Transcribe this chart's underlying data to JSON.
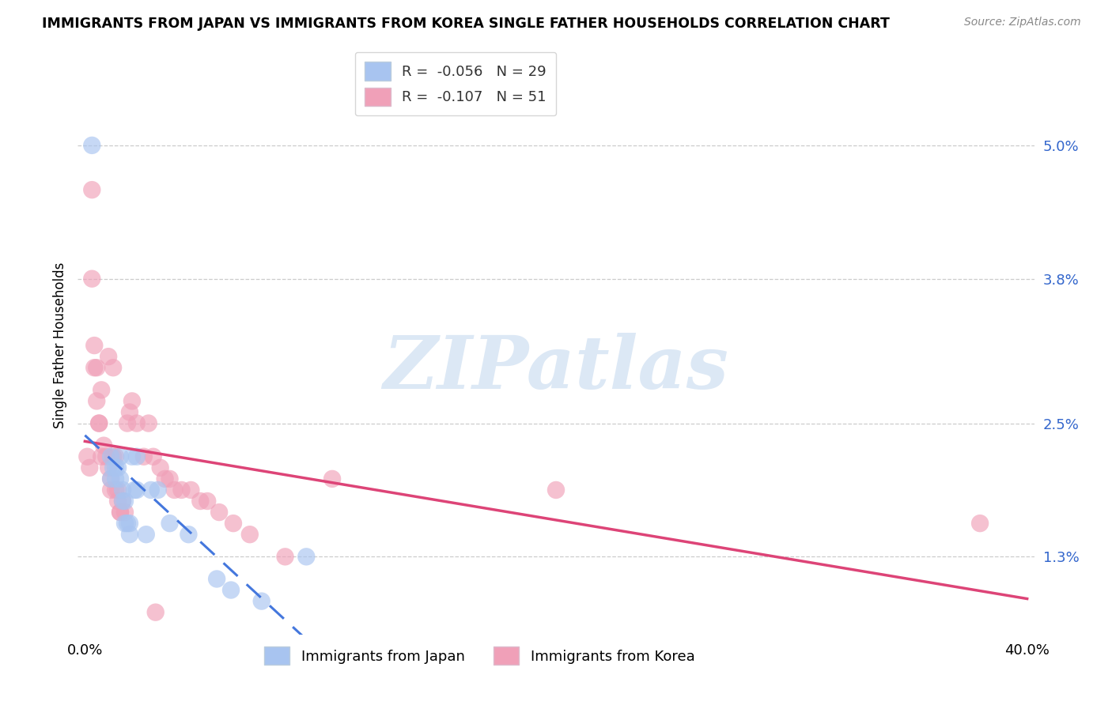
{
  "title": "IMMIGRANTS FROM JAPAN VS IMMIGRANTS FROM KOREA SINGLE FATHER HOUSEHOLDS CORRELATION CHART",
  "source": "Source: ZipAtlas.com",
  "ylabel": "Single Father Households",
  "ytick_labels": [
    "1.3%",
    "2.5%",
    "3.8%",
    "5.0%"
  ],
  "ytick_values": [
    0.013,
    0.025,
    0.038,
    0.05
  ],
  "xlim": [
    -0.003,
    0.403
  ],
  "ylim": [
    0.006,
    0.058
  ],
  "japan_R": -0.056,
  "japan_N": 29,
  "korea_R": -0.107,
  "korea_N": 51,
  "japan_color": "#a8c4f0",
  "korea_color": "#f0a0b8",
  "japan_line_color": "#4477dd",
  "korea_line_color": "#dd4477",
  "watermark_text": "ZIPatlas",
  "watermark_color": "#dce8f5",
  "legend_R_color": "#2255cc",
  "japan_points": [
    [
      0.003,
      0.05
    ],
    [
      0.011,
      0.022
    ],
    [
      0.011,
      0.02
    ],
    [
      0.012,
      0.021
    ],
    [
      0.013,
      0.02
    ],
    [
      0.013,
      0.021
    ],
    [
      0.014,
      0.021
    ],
    [
      0.015,
      0.02
    ],
    [
      0.015,
      0.022
    ],
    [
      0.016,
      0.019
    ],
    [
      0.016,
      0.018
    ],
    [
      0.017,
      0.018
    ],
    [
      0.017,
      0.016
    ],
    [
      0.018,
      0.016
    ],
    [
      0.019,
      0.016
    ],
    [
      0.019,
      0.015
    ],
    [
      0.02,
      0.022
    ],
    [
      0.021,
      0.019
    ],
    [
      0.022,
      0.019
    ],
    [
      0.022,
      0.022
    ],
    [
      0.026,
      0.015
    ],
    [
      0.028,
      0.019
    ],
    [
      0.031,
      0.019
    ],
    [
      0.036,
      0.016
    ],
    [
      0.044,
      0.015
    ],
    [
      0.056,
      0.011
    ],
    [
      0.062,
      0.01
    ],
    [
      0.075,
      0.009
    ],
    [
      0.094,
      0.013
    ]
  ],
  "korea_points": [
    [
      0.001,
      0.022
    ],
    [
      0.002,
      0.021
    ],
    [
      0.003,
      0.046
    ],
    [
      0.003,
      0.038
    ],
    [
      0.004,
      0.032
    ],
    [
      0.004,
      0.03
    ],
    [
      0.005,
      0.03
    ],
    [
      0.005,
      0.027
    ],
    [
      0.006,
      0.025
    ],
    [
      0.006,
      0.025
    ],
    [
      0.007,
      0.028
    ],
    [
      0.007,
      0.022
    ],
    [
      0.008,
      0.023
    ],
    [
      0.009,
      0.022
    ],
    [
      0.01,
      0.031
    ],
    [
      0.01,
      0.021
    ],
    [
      0.011,
      0.02
    ],
    [
      0.011,
      0.019
    ],
    [
      0.012,
      0.022
    ],
    [
      0.012,
      0.03
    ],
    [
      0.013,
      0.019
    ],
    [
      0.013,
      0.022
    ],
    [
      0.014,
      0.019
    ],
    [
      0.014,
      0.018
    ],
    [
      0.015,
      0.017
    ],
    [
      0.015,
      0.017
    ],
    [
      0.016,
      0.018
    ],
    [
      0.017,
      0.017
    ],
    [
      0.018,
      0.025
    ],
    [
      0.019,
      0.026
    ],
    [
      0.02,
      0.027
    ],
    [
      0.022,
      0.025
    ],
    [
      0.025,
      0.022
    ],
    [
      0.027,
      0.025
    ],
    [
      0.029,
      0.022
    ],
    [
      0.032,
      0.021
    ],
    [
      0.034,
      0.02
    ],
    [
      0.036,
      0.02
    ],
    [
      0.038,
      0.019
    ],
    [
      0.041,
      0.019
    ],
    [
      0.045,
      0.019
    ],
    [
      0.049,
      0.018
    ],
    [
      0.052,
      0.018
    ],
    [
      0.057,
      0.017
    ],
    [
      0.063,
      0.016
    ],
    [
      0.07,
      0.015
    ],
    [
      0.085,
      0.013
    ],
    [
      0.105,
      0.02
    ],
    [
      0.2,
      0.019
    ],
    [
      0.38,
      0.016
    ],
    [
      0.03,
      0.008
    ]
  ]
}
